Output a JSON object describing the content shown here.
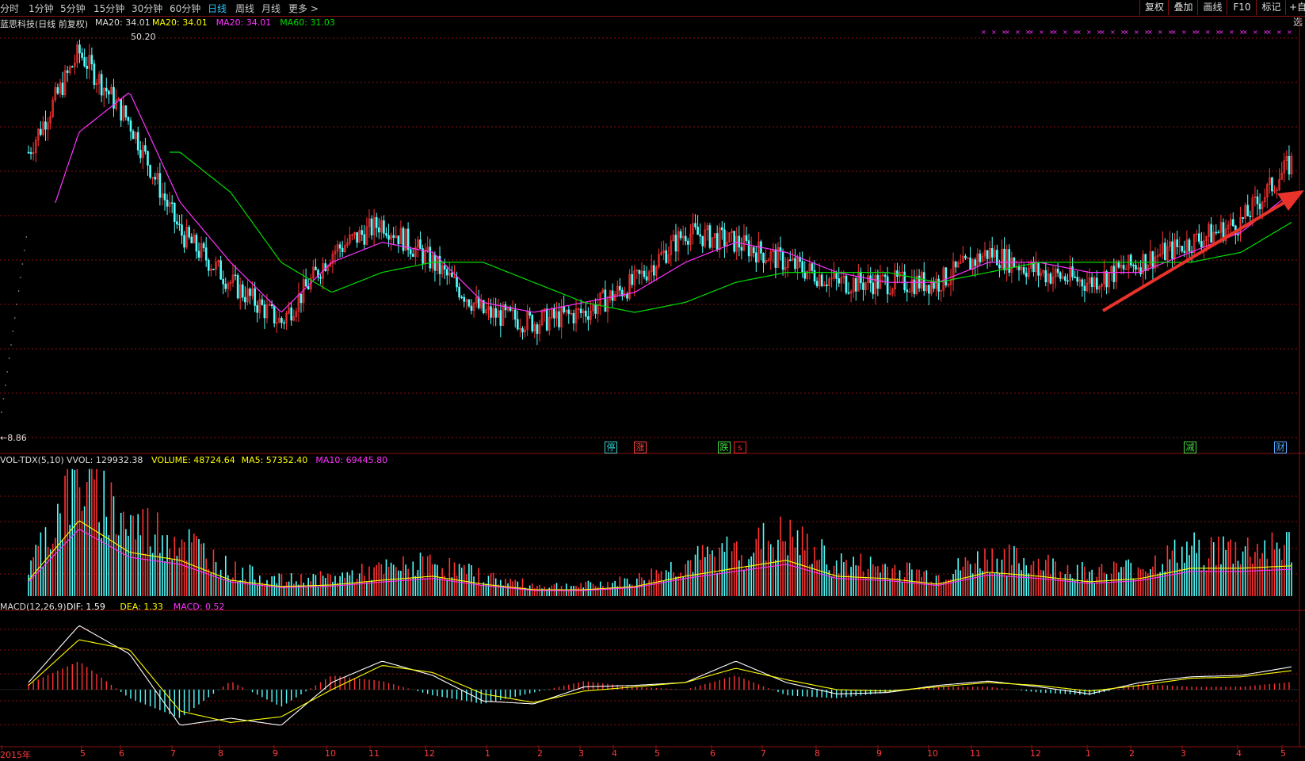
{
  "toolbar": {
    "periods": [
      {
        "label": "分时",
        "active": false
      },
      {
        "label": "1分钟",
        "active": false
      },
      {
        "label": "5分钟",
        "active": false
      },
      {
        "label": "15分钟",
        "active": false
      },
      {
        "label": "30分钟",
        "active": false
      },
      {
        "label": "60分钟",
        "active": false
      },
      {
        "label": "日线",
        "active": true
      },
      {
        "label": "周线",
        "active": false
      },
      {
        "label": "月线",
        "active": false
      },
      {
        "label": "更多 >",
        "active": false
      }
    ],
    "right_buttons": [
      "复权",
      "叠加",
      "画线",
      "F10",
      "标记",
      "+自选"
    ]
  },
  "price_panel": {
    "title": "蓝思科技(日线 前复权)",
    "ma_readout": "MA20: 34.01",
    "ma_items": [
      {
        "label": "MA20: 34.01",
        "color": "#ffff00"
      },
      {
        "label": "MA20: 34.01",
        "color": "#ff33ff"
      },
      {
        "label": "MA60: 31.03",
        "color": "#00dd00"
      }
    ],
    "high_label": "50.20",
    "low_label": "8.86",
    "event_badges": [
      {
        "text": "停",
        "color": "#33cccc"
      },
      {
        "text": "涨",
        "color": "#ff4444"
      },
      {
        "text": "跌",
        "color": "#44dd44"
      },
      {
        "text": "s",
        "color": "#ff2222"
      },
      {
        "text": "减",
        "color": "#44dd44"
      },
      {
        "text": "财",
        "color": "#55aaff"
      }
    ]
  },
  "volume_panel": {
    "title": "VOL-TDX(5,10)",
    "items": [
      {
        "label": "VVOL: 129932.38",
        "color": "#dddddd"
      },
      {
        "label": "VOLUME: 48724.64",
        "color": "#ffff00"
      },
      {
        "label": "MA5: 57352.40",
        "color": "#ffff00"
      },
      {
        "label": "MA10: 69445.80",
        "color": "#ff33ff"
      }
    ]
  },
  "macd_panel": {
    "title": "MACD(12,26,9)",
    "items": [
      {
        "label": "DIF: 1.59",
        "color": "#ffffff"
      },
      {
        "label": "DEA: 1.33",
        "color": "#ffff00"
      },
      {
        "label": "MACD: 0.52",
        "color": "#ff33ff"
      }
    ]
  },
  "x_axis": {
    "labels": [
      "2015年",
      "5",
      "6",
      "7",
      "8",
      "9",
      "10",
      "11",
      "12",
      "1",
      "2",
      "3",
      "4",
      "5",
      "6",
      "7",
      "8",
      "9",
      "10",
      "11",
      "12",
      "1",
      "2",
      "3",
      "4",
      "5"
    ]
  },
  "colors": {
    "up": "#ff3232",
    "down": "#54ffff",
    "ma_short": "#ff33ff",
    "ma_long": "#00dd00",
    "grid": "#8a1010",
    "arrow": "#e8322a"
  },
  "chart_data": {
    "type": "candlestick",
    "title": "蓝思科技(日线 前复权)",
    "x": [
      "2015-04",
      "2015-05",
      "2015-06",
      "2015-07",
      "2015-08",
      "2015-09",
      "2015-10",
      "2015-11",
      "2015-12",
      "2016-01",
      "2016-02",
      "2016-03",
      "2016-04",
      "2016-05",
      "2016-06",
      "2016-07",
      "2016-08",
      "2016-09",
      "2016-10",
      "2016-11",
      "2016-12",
      "2017-01",
      "2017-02",
      "2017-03",
      "2017-04",
      "2017-05"
    ],
    "series": [
      {
        "name": "price",
        "values": [
          38,
          48,
          41,
          30,
          25,
          21,
          28,
          31,
          27,
          22,
          21,
          22,
          25,
          30,
          29,
          27,
          25,
          25,
          25,
          28,
          26,
          25,
          27,
          29,
          31,
          37
        ]
      },
      {
        "name": "MA20",
        "values": [
          25,
          40,
          44,
          33,
          27,
          22,
          27,
          29,
          28,
          23,
          22,
          23,
          24,
          27,
          29,
          28,
          26,
          25,
          25,
          27,
          27,
          26,
          26,
          28,
          30,
          34
        ]
      },
      {
        "name": "MA60",
        "values": [
          null,
          null,
          null,
          38,
          34,
          27,
          24,
          26,
          27,
          27,
          25,
          23,
          22,
          23,
          25,
          26,
          26,
          26,
          25,
          26,
          27,
          27,
          27,
          27,
          28,
          31
        ]
      }
    ],
    "high": 50.2,
    "low": 8.86,
    "volume": [
      20,
      95,
      55,
      45,
      20,
      12,
      14,
      20,
      25,
      15,
      8,
      8,
      12,
      25,
      35,
      45,
      25,
      22,
      15,
      30,
      25,
      18,
      22,
      35,
      35,
      38
    ],
    "macd_dif": [
      0.5,
      4.5,
      2.5,
      -2.5,
      -2.0,
      -2.5,
      0.5,
      2.0,
      1.0,
      -0.8,
      -1.0,
      0.2,
      0.3,
      0.5,
      2.0,
      0.5,
      -0.3,
      -0.2,
      0.3,
      0.6,
      0.2,
      -0.3,
      0.5,
      0.9,
      1.0,
      1.6
    ],
    "macd_dea": [
      0.3,
      3.5,
      2.8,
      -1.5,
      -2.3,
      -1.9,
      0.0,
      1.7,
      1.2,
      -0.3,
      -0.9,
      -0.1,
      0.2,
      0.5,
      1.5,
      0.7,
      0.0,
      -0.1,
      0.2,
      0.5,
      0.3,
      -0.1,
      0.3,
      0.8,
      0.9,
      1.33
    ],
    "ylim": [
      8.86,
      50.2
    ]
  }
}
